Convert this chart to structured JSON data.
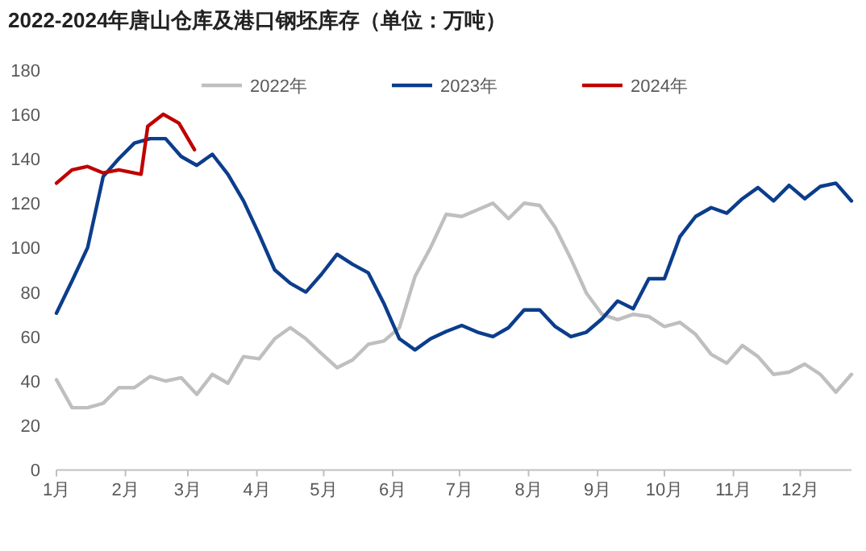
{
  "chart_data": {
    "type": "line",
    "title": "2022-2024年唐山仓库及港口钢坯库存（单位：万吨）",
    "x": [
      "--01-01",
      "--01-08",
      "--01-15",
      "--01-22",
      "--01-29",
      "--02-05",
      "--02-12",
      "--02-19",
      "--02-26",
      "--03-05",
      "--03-12",
      "--03-19",
      "--03-26",
      "--04-02",
      "--04-09",
      "--04-16",
      "--04-23",
      "--04-30",
      "--05-07",
      "--05-14",
      "--05-21",
      "--05-28",
      "--06-04",
      "--06-11",
      "--06-18",
      "--06-25",
      "--07-02",
      "--07-09",
      "--07-16",
      "--07-23",
      "--07-30",
      "--08-06",
      "--08-13",
      "--08-20",
      "--08-27",
      "--09-03",
      "--09-10",
      "--09-17",
      "--09-24",
      "--10-01",
      "--10-08",
      "--10-15",
      "--10-22",
      "--10-29",
      "--11-05",
      "--11-12",
      "--11-19",
      "--11-26",
      "--12-03",
      "--12-10",
      "--12-17",
      "--12-24"
    ],
    "series": [
      {
        "name": "2022年",
        "color": "#bfbfbf",
        "values": [
          40.6,
          28,
          28,
          30,
          37,
          37,
          42,
          40,
          41.5,
          34,
          43,
          39,
          51,
          50,
          59,
          64,
          59,
          52.4,
          46,
          49.5,
          56.5,
          58,
          64,
          87,
          100,
          115,
          114,
          117,
          120,
          113,
          120,
          119,
          109,
          95,
          79.5,
          70,
          67.6,
          70,
          69,
          64.5,
          66.4,
          61,
          52,
          48,
          56,
          51,
          43,
          44,
          47.6,
          43,
          35,
          43
        ]
      },
      {
        "name": "2023年",
        "color": "#0b3d8c",
        "values": [
          70.5,
          85,
          100,
          132,
          140,
          147,
          149,
          149,
          141,
          137,
          142,
          133,
          121,
          106,
          90,
          84,
          80,
          88,
          97,
          92.5,
          88.7,
          75,
          59,
          54,
          59,
          62.3,
          65,
          62,
          60,
          64,
          72,
          72,
          64.5,
          60,
          62,
          68,
          76,
          72.5,
          86,
          86,
          105,
          114,
          118,
          115.5,
          122,
          127,
          121,
          128,
          122,
          127.5,
          129,
          121
        ]
      },
      {
        "name": "2024年",
        "color": "#c00000",
        "x": [
          "--01-01",
          "--01-08",
          "--01-15",
          "--01-22",
          "--01-29",
          "--02-08",
          "--02-11",
          "--02-18",
          "--02-25",
          "--03-04"
        ],
        "values": [
          129,
          135,
          136.5,
          133.6,
          135,
          133,
          154.6,
          160,
          156,
          144
        ]
      }
    ],
    "xlim": [
      "--01-01",
      "--12-24"
    ],
    "xticks": [
      {
        "value": "--01-01",
        "label": "1月"
      },
      {
        "value": "--02-01",
        "label": "2月"
      },
      {
        "value": "--03-01",
        "label": "3月"
      },
      {
        "value": "--04-01",
        "label": "4月"
      },
      {
        "value": "--05-01",
        "label": "5月"
      },
      {
        "value": "--06-01",
        "label": "6月"
      },
      {
        "value": "--07-01",
        "label": "7月"
      },
      {
        "value": "--08-01",
        "label": "8月"
      },
      {
        "value": "--09-01",
        "label": "9月"
      },
      {
        "value": "--10-01",
        "label": "10月"
      },
      {
        "value": "--11-01",
        "label": "11月"
      },
      {
        "value": "--12-01",
        "label": "12月"
      }
    ],
    "ylim": [
      0,
      180
    ],
    "yticks": [
      0,
      20,
      40,
      60,
      80,
      100,
      120,
      140,
      160,
      180
    ],
    "grid": false,
    "legend": "top",
    "marker": "none",
    "line_style": "solid"
  }
}
